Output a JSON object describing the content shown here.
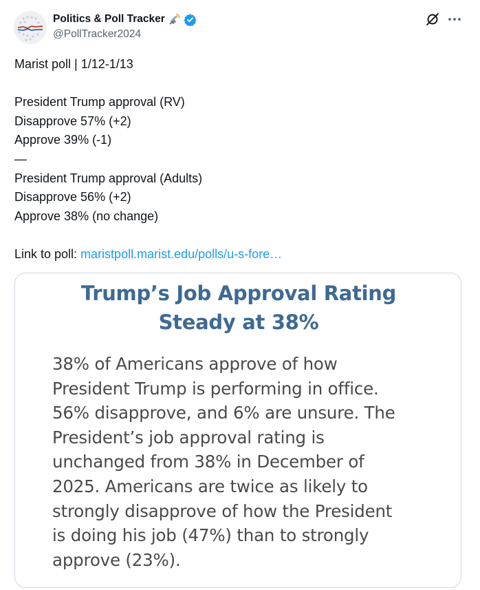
{
  "author": {
    "display_name": "Politics & Poll Tracker",
    "handle": "@PollTracker2024",
    "emoji_icon": "satellite-antenna-icon",
    "verified_icon": "verified-badge-icon",
    "verified_color": "#1d9bf0"
  },
  "actions": {
    "grok_icon": "grok-icon",
    "more_icon": "more-options-icon"
  },
  "tweet": {
    "lines": [
      "Marist poll | 1/12-1/13",
      "",
      "President Trump approval (RV)",
      "Disapprove 57% (+2)",
      "Approve 39% (-1)",
      "—",
      "President Trump approval (Adults)",
      "Disapprove 56% (+2)",
      "Approve 38% (no change)",
      ""
    ],
    "link_prefix": "Link to poll: ",
    "link_text": "maristpoll.marist.edu/polls/u-s-fore…",
    "link_color": "#1d9bf0"
  },
  "card": {
    "title_lines": [
      "Trump’s Job Approval Rating",
      "Steady at 38%"
    ],
    "title_color": "#3e6a93",
    "body_lines": [
      "38% of Americans approve of how",
      "President Trump is performing in office.",
      "56% disapprove, and 6% are unsure. The",
      "President’s job approval rating is",
      "unchanged from 38% in December of",
      "2025. Americans are twice as likely to",
      "strongly disapprove of how the President",
      "is doing his job (47%) than to strongly",
      "approve (23%)."
    ]
  }
}
